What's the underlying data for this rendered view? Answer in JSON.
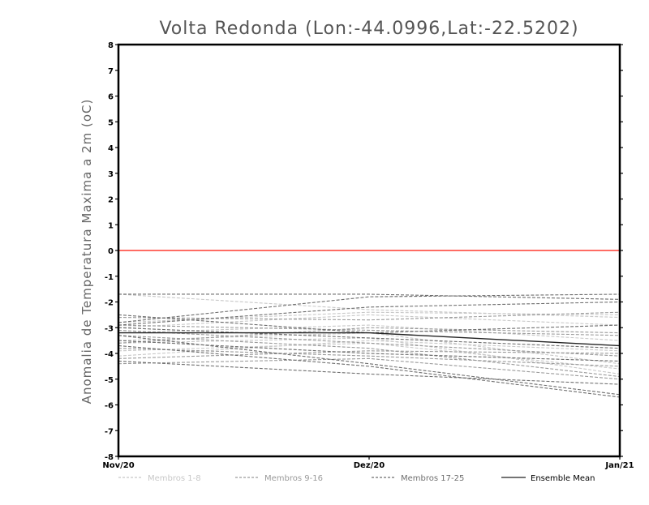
{
  "chart_data": {
    "type": "line",
    "title": "Volta Redonda (Lon:-44.0996,Lat:-22.5202)",
    "xlabel": "",
    "ylabel": "Anomalia de Temperatura Maxima a 2m (oC)",
    "x": [
      "Nov/20",
      "Dez/20",
      "Jan/21"
    ],
    "ylim": [
      -8,
      8
    ],
    "yticks": [
      8,
      7,
      6,
      5,
      4,
      3,
      2,
      1,
      0,
      -1,
      -2,
      -3,
      -4,
      -5,
      -6,
      -7,
      -8
    ],
    "ytick_labels": [
      "8",
      "7",
      "6",
      "5",
      "4",
      "3",
      "2",
      "1",
      "0",
      "-1",
      "-2",
      "-3",
      "-4",
      "-5",
      "-6",
      "-7",
      "-8"
    ],
    "zero_line_color": "#ff3b30",
    "groups": [
      {
        "name": "Membros 1-8",
        "color": "#c8c8c8",
        "dash": "dashed"
      },
      {
        "name": "Membros 9-16",
        "color": "#9a9a9a",
        "dash": "dashed"
      },
      {
        "name": "Membros 17-25",
        "color": "#6e6e6e",
        "dash": "dashed"
      },
      {
        "name": "Ensemble Mean",
        "color": "#222222",
        "dash": "solid"
      }
    ],
    "series": [
      {
        "group": 0,
        "values": [
          -1.7,
          -2.3,
          -2.6
        ]
      },
      {
        "group": 0,
        "values": [
          -2.8,
          -2.4,
          -2.5
        ]
      },
      {
        "group": 0,
        "values": [
          -3.0,
          -2.5,
          -2.9
        ]
      },
      {
        "group": 0,
        "values": [
          -3.2,
          -2.9,
          -3.5
        ]
      },
      {
        "group": 0,
        "values": [
          -3.5,
          -3.2,
          -4.4
        ]
      },
      {
        "group": 0,
        "values": [
          -3.6,
          -3.4,
          -4.8
        ]
      },
      {
        "group": 0,
        "values": [
          -3.9,
          -3.6,
          -4.6
        ]
      },
      {
        "group": 0,
        "values": [
          -4.1,
          -3.5,
          -3.9
        ]
      },
      {
        "group": 1,
        "values": [
          -2.6,
          -2.7,
          -2.4
        ]
      },
      {
        "group": 1,
        "values": [
          -2.9,
          -3.1,
          -3.3
        ]
      },
      {
        "group": 1,
        "values": [
          -3.1,
          -3.6,
          -4.1
        ]
      },
      {
        "group": 1,
        "values": [
          -3.3,
          -3.8,
          -4.9
        ]
      },
      {
        "group": 1,
        "values": [
          -3.6,
          -3.0,
          -3.2
        ]
      },
      {
        "group": 1,
        "values": [
          -3.8,
          -4.1,
          -4.5
        ]
      },
      {
        "group": 1,
        "values": [
          -4.2,
          -3.9,
          -4.0
        ]
      },
      {
        "group": 1,
        "values": [
          -4.4,
          -4.2,
          -5.0
        ]
      },
      {
        "group": 2,
        "values": [
          -1.7,
          -1.7,
          -1.9
        ]
      },
      {
        "group": 2,
        "values": [
          -2.5,
          -3.2,
          -2.9
        ]
      },
      {
        "group": 2,
        "values": [
          -2.8,
          -1.8,
          -1.7
        ]
      },
      {
        "group": 2,
        "values": [
          -2.9,
          -2.2,
          -2.0
        ]
      },
      {
        "group": 2,
        "values": [
          -3.0,
          -3.4,
          -3.8
        ]
      },
      {
        "group": 2,
        "values": [
          -3.3,
          -4.4,
          -5.6
        ]
      },
      {
        "group": 2,
        "values": [
          -3.5,
          -4.0,
          -4.3
        ]
      },
      {
        "group": 2,
        "values": [
          -3.7,
          -4.5,
          -5.7
        ]
      },
      {
        "group": 2,
        "values": [
          -4.3,
          -4.8,
          -5.2
        ]
      },
      {
        "group": 3,
        "values": [
          -3.2,
          -3.2,
          -3.7
        ]
      }
    ]
  }
}
